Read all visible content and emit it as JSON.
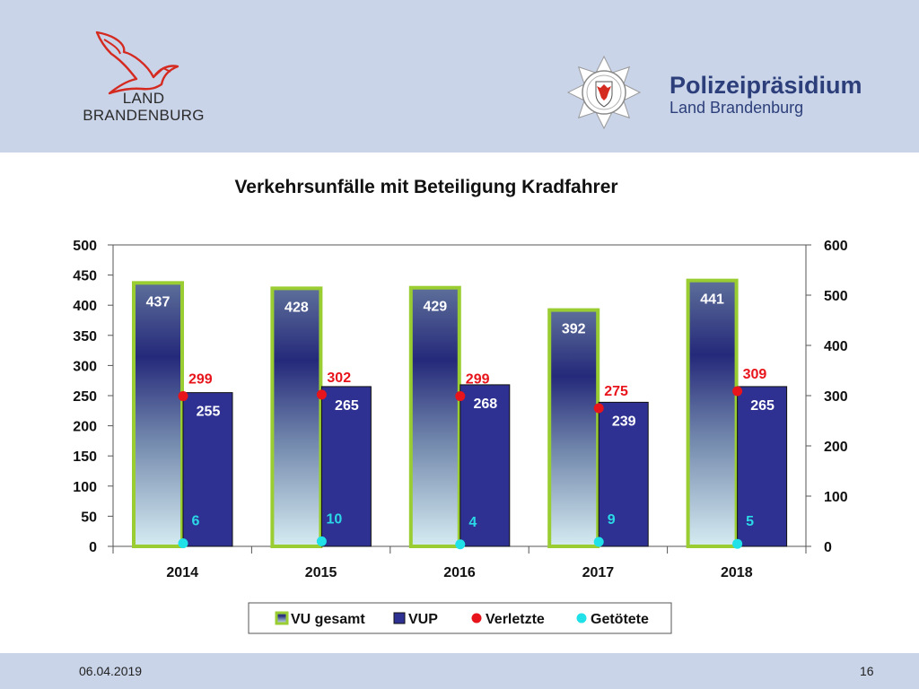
{
  "header": {
    "brand_line1": "LAND",
    "brand_line2": "BRANDENBURG",
    "police_title": "Polizeipräsidium",
    "police_subtitle": "Land Brandenburg",
    "brand_color": "#d42a20",
    "police_color": "#2d3f7a"
  },
  "footer": {
    "date": "06.04.2019",
    "page": "16"
  },
  "chart_data": {
    "type": "bar",
    "title": "Verkehrsunfälle mit Beteiligung Kradfahrer",
    "categories": [
      "2014",
      "2015",
      "2016",
      "2017",
      "2018"
    ],
    "ylim": [
      0,
      500
    ],
    "yticks": [
      0,
      50,
      100,
      150,
      200,
      250,
      300,
      350,
      400,
      450,
      500
    ],
    "y2lim": [
      0,
      600
    ],
    "y2ticks": [
      0,
      100,
      200,
      300,
      400,
      500,
      600
    ],
    "grid": false,
    "legend_position": "bottom",
    "series": [
      {
        "name": "VU gesamt",
        "kind": "bar",
        "axis": "left",
        "values": [
          437,
          428,
          429,
          392,
          441
        ],
        "color": "#9acd32"
      },
      {
        "name": "VUP",
        "kind": "bar",
        "axis": "left",
        "values": [
          255,
          265,
          268,
          239,
          265
        ],
        "color": "#2e3192"
      },
      {
        "name": "Verletzte",
        "kind": "marker",
        "axis": "right",
        "values": [
          299,
          302,
          299,
          275,
          309
        ],
        "color": "#e8141b"
      },
      {
        "name": "Getötete",
        "kind": "marker",
        "axis": "right",
        "values": [
          6,
          10,
          4,
          9,
          5
        ],
        "color": "#20e0e8"
      }
    ]
  }
}
